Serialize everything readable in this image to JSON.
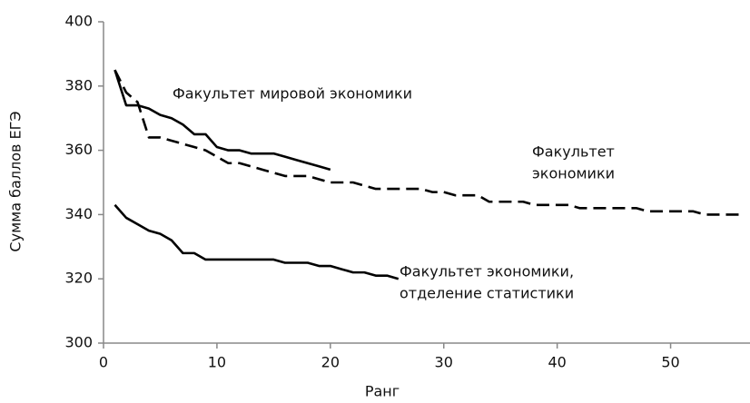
{
  "chart_data": {
    "type": "line",
    "xlabel": "Ранг",
    "ylabel": "Сумма баллов ЕГЭ",
    "xlim": [
      0,
      57
    ],
    "ylim": [
      300,
      400
    ],
    "xticks": [
      0,
      10,
      20,
      30,
      40,
      50
    ],
    "yticks": [
      300,
      320,
      340,
      360,
      380,
      400
    ],
    "grid": false,
    "series": [
      {
        "label": [
          "Факультет мировой экономики"
        ],
        "color": "#000000",
        "dashed": false,
        "x": [
          1,
          2,
          3,
          4,
          5,
          6,
          7,
          8,
          9,
          10,
          11,
          12,
          13,
          14,
          15,
          16,
          17,
          18,
          19,
          20
        ],
        "values": [
          385,
          374,
          374,
          373,
          371,
          370,
          368,
          365,
          365,
          361,
          360,
          360,
          359,
          359,
          359,
          358,
          357,
          356,
          355,
          354
        ]
      },
      {
        "label": [
          "Факультет",
          "экономики"
        ],
        "color": "#000000",
        "dashed": true,
        "x": [
          1,
          2,
          3,
          4,
          5,
          6,
          7,
          8,
          9,
          10,
          11,
          12,
          13,
          14,
          15,
          16,
          17,
          18,
          19,
          20,
          21,
          22,
          23,
          24,
          25,
          26,
          27,
          28,
          29,
          30,
          31,
          32,
          33,
          34,
          35,
          36,
          37,
          38,
          39,
          40,
          41,
          42,
          43,
          44,
          45,
          46,
          47,
          48,
          49,
          50,
          51,
          52,
          53,
          54,
          55,
          56
        ],
        "values": [
          385,
          378,
          375,
          364,
          364,
          363,
          362,
          361,
          360,
          358,
          356,
          356,
          355,
          354,
          353,
          352,
          352,
          352,
          351,
          350,
          350,
          350,
          349,
          348,
          348,
          348,
          348,
          348,
          347,
          347,
          346,
          346,
          346,
          344,
          344,
          344,
          344,
          343,
          343,
          343,
          343,
          342,
          342,
          342,
          342,
          342,
          342,
          341,
          341,
          341,
          341,
          341,
          340,
          340,
          340,
          340
        ]
      },
      {
        "label": [
          "Факультет экономики,",
          "отделение статистики"
        ],
        "color": "#000000",
        "dashed": false,
        "x": [
          1,
          2,
          3,
          4,
          5,
          6,
          7,
          8,
          9,
          10,
          11,
          12,
          13,
          14,
          15,
          16,
          17,
          18,
          19,
          20,
          21,
          22,
          23,
          24,
          25,
          26
        ],
        "values": [
          343,
          339,
          337,
          335,
          334,
          332,
          328,
          328,
          326,
          326,
          326,
          326,
          326,
          326,
          326,
          325,
          325,
          325,
          324,
          324,
          323,
          322,
          322,
          321,
          321,
          320
        ]
      }
    ]
  }
}
